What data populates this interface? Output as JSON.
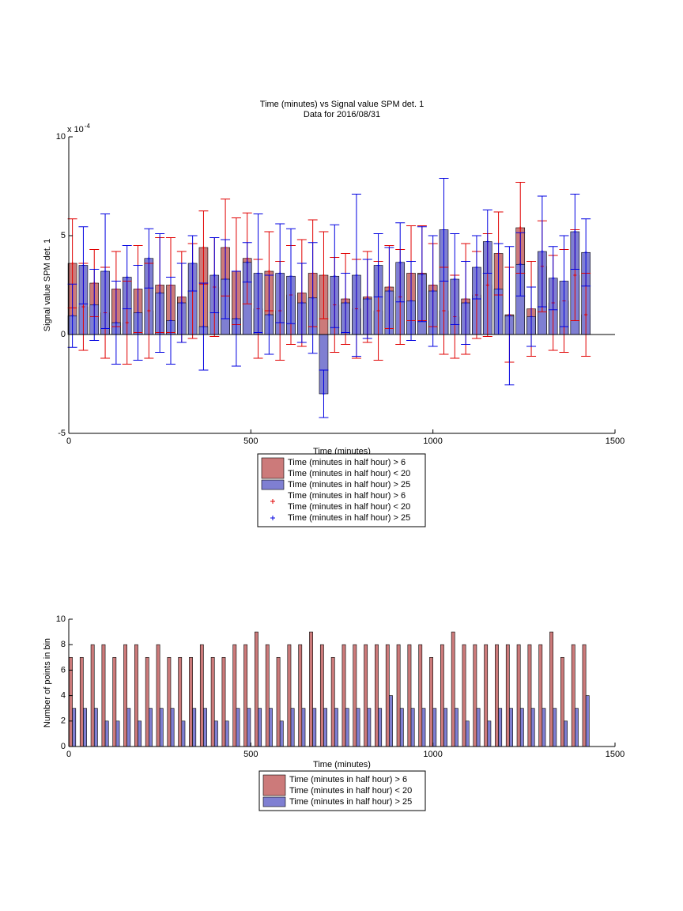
{
  "chart_data": [
    {
      "type": "bar",
      "barmode": "overlay",
      "title": "Time (minutes) vs Signal value SPM det. 1",
      "subtitle": "Data for 2016/08/31",
      "x_label": "Time (minutes)",
      "y_label": "Signal value SPM det. 1",
      "y_multiplier": "x 10",
      "y_exponent": "-4",
      "x": [
        10,
        40,
        70,
        100,
        130,
        160,
        190,
        220,
        250,
        280,
        310,
        340,
        370,
        400,
        430,
        460,
        490,
        520,
        550,
        580,
        610,
        640,
        670,
        700,
        730,
        760,
        790,
        820,
        850,
        880,
        910,
        940,
        970,
        1000,
        1030,
        1060,
        1090,
        1120,
        1150,
        1180,
        1210,
        1240,
        1270,
        1300,
        1330,
        1360,
        1390,
        1420
      ],
      "xlim": [
        0,
        1500
      ],
      "xticks": [
        0,
        500,
        1000,
        1500
      ],
      "ylim": [
        -5,
        10
      ],
      "yticks": [
        -5,
        0,
        5,
        10
      ],
      "series": [
        {
          "name": [
            "Time (minutes in half hour) > 6",
            "Time (minutes in half hour) < 20"
          ],
          "color": "#cc7a7a",
          "error_color": "#e00000",
          "values": [
            3.6,
            1.4,
            2.6,
            1.1,
            2.3,
            0.6,
            2.3,
            1.2,
            2.5,
            2.5,
            1.9,
            2.2,
            4.4,
            2.4,
            4.4,
            3.2,
            3.85,
            1.3,
            3.2,
            1.2,
            2.0,
            2.1,
            3.1,
            3.0,
            1.5,
            1.8,
            1.3,
            1.9,
            1.2,
            2.4,
            1.9,
            3.1,
            3.1,
            2.5,
            1.2,
            0.9,
            1.8,
            2.0,
            2.5,
            4.1,
            1.0,
            5.4,
            1.3,
            3.45,
            1.6,
            1.7,
            3.0,
            1.0
          ],
          "errors": [
            2.25,
            2.2,
            1.7,
            2.3,
            1.9,
            2.1,
            2.2,
            2.4,
            2.4,
            2.4,
            2.3,
            2.4,
            1.85,
            2.5,
            2.45,
            2.7,
            2.3,
            2.5,
            2.0,
            2.5,
            2.5,
            2.7,
            2.7,
            2.2,
            2.4,
            2.3,
            2.5,
            2.3,
            2.5,
            2.1,
            2.4,
            2.4,
            2.4,
            2.1,
            2.2,
            2.1,
            2.8,
            2.2,
            2.6,
            2.1,
            2.4,
            2.3,
            2.4,
            2.3,
            2.4,
            2.6,
            2.3,
            2.1
          ]
        },
        {
          "name": [
            "Time (minutes in half hour) > 25"
          ],
          "color": "#7f7fd2",
          "error_color": "#0000e0",
          "values": [
            0.95,
            3.5,
            1.5,
            3.2,
            0.6,
            2.9,
            1.1,
            3.85,
            2.1,
            0.7,
            1.6,
            3.6,
            0.4,
            3.0,
            2.8,
            0.8,
            3.65,
            3.1,
            1.0,
            3.1,
            2.95,
            1.6,
            1.85,
            -3.0,
            2.95,
            1.6,
            3.0,
            1.8,
            3.5,
            2.2,
            3.65,
            1.7,
            3.05,
            2.2,
            5.3,
            2.8,
            1.6,
            3.4,
            4.7,
            2.3,
            0.95,
            3.55,
            0.9,
            4.2,
            2.85,
            2.7,
            5.2,
            4.15
          ],
          "errors": [
            1.6,
            1.95,
            1.8,
            2.9,
            2.1,
            1.6,
            2.4,
            1.5,
            3.0,
            2.2,
            2.0,
            1.4,
            2.2,
            1.9,
            2.0,
            2.4,
            1.0,
            3.0,
            2.0,
            2.5,
            2.4,
            2.0,
            2.8,
            1.2,
            2.6,
            1.5,
            4.1,
            2.0,
            1.6,
            2.2,
            2.0,
            2.0,
            2.4,
            2.8,
            2.6,
            2.3,
            2.1,
            1.6,
            1.6,
            2.3,
            3.5,
            1.6,
            1.5,
            2.8,
            1.6,
            2.3,
            1.9,
            1.7
          ]
        }
      ]
    },
    {
      "type": "bar",
      "barmode": "group",
      "x_label": "Time (minutes)",
      "y_label": "Number of points in bin",
      "x": [
        10,
        40,
        70,
        100,
        130,
        160,
        190,
        220,
        250,
        280,
        310,
        340,
        370,
        400,
        430,
        460,
        490,
        520,
        550,
        580,
        610,
        640,
        670,
        700,
        730,
        760,
        790,
        820,
        850,
        880,
        910,
        940,
        970,
        1000,
        1030,
        1060,
        1090,
        1120,
        1150,
        1180,
        1210,
        1240,
        1270,
        1300,
        1330,
        1360,
        1390,
        1420
      ],
      "xlim": [
        0,
        1500
      ],
      "xticks": [
        0,
        500,
        1000,
        1500
      ],
      "ylim": [
        0,
        10
      ],
      "yticks": [
        0,
        2,
        4,
        6,
        8,
        10
      ],
      "series": [
        {
          "name": [
            "Time (minutes in half hour) > 6",
            "Time (minutes in half hour) < 20"
          ],
          "color": "#cc7a7a",
          "values": [
            7,
            7,
            8,
            8,
            7,
            8,
            8,
            7,
            8,
            7,
            7,
            7,
            8,
            7,
            7,
            8,
            8,
            9,
            8,
            7,
            8,
            8,
            9,
            8,
            7,
            8,
            8,
            8,
            8,
            8,
            8,
            8,
            8,
            7,
            8,
            9,
            8,
            8,
            8,
            8,
            8,
            8,
            8,
            8,
            9,
            7,
            8,
            8
          ]
        },
        {
          "name": [
            "Time (minutes in half hour) > 25"
          ],
          "color": "#7f7fd2",
          "values": [
            3,
            3,
            3,
            2,
            2,
            3,
            2,
            3,
            3,
            3,
            2,
            3,
            3,
            2,
            2,
            3,
            3,
            3,
            3,
            2,
            3,
            3,
            3,
            3,
            3,
            3,
            3,
            3,
            3,
            4,
            3,
            3,
            3,
            3,
            3,
            3,
            2,
            3,
            2,
            3,
            3,
            3,
            3,
            3,
            3,
            2,
            3,
            4
          ]
        }
      ]
    }
  ]
}
